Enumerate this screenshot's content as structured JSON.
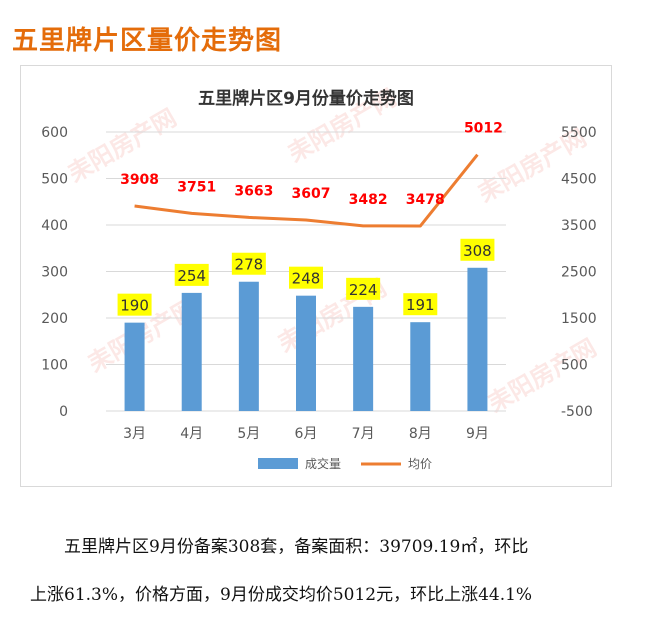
{
  "page_title": "五里牌片区量价走势图",
  "watermark": "耒阳房产网",
  "colors": {
    "title": "#e46c0a",
    "bar": "#5b9bd5",
    "line": "#ed7d31",
    "bar_label_bg": "#ffff00",
    "line_label": "#ff0000",
    "axis_text": "#595959",
    "grid": "#d9d9d9"
  },
  "chart_data": {
    "type": "bar+line",
    "title": "五里牌片区9月份量价走势图",
    "categories": [
      "3月",
      "4月",
      "5月",
      "6月",
      "7月",
      "8月",
      "9月"
    ],
    "series": [
      {
        "name": "成交量",
        "type": "bar",
        "axis": "left",
        "values": [
          190,
          254,
          278,
          248,
          224,
          191,
          308
        ]
      },
      {
        "name": "均价",
        "type": "line",
        "axis": "right",
        "values": [
          3908,
          3751,
          3663,
          3607,
          3482,
          3478,
          5012
        ]
      }
    ],
    "y_left": {
      "min": 0,
      "max": 600,
      "ticks": [
        "0",
        "100",
        "200",
        "300",
        "400",
        "500",
        "600"
      ]
    },
    "y_right": {
      "min": -500,
      "max": 5500,
      "ticks": [
        "-500",
        "500",
        "1500",
        "2500",
        "3500",
        "4500",
        "5500"
      ]
    },
    "legend": [
      "成交量",
      "均价"
    ],
    "legend_position": "bottom"
  },
  "summary": {
    "line1": "五里牌片区9月份备案308套，备案面积：39709.19㎡，环比",
    "line2": "上涨61.3%，价格方面，9月份成交均价5012元，环比上涨44.1%"
  }
}
